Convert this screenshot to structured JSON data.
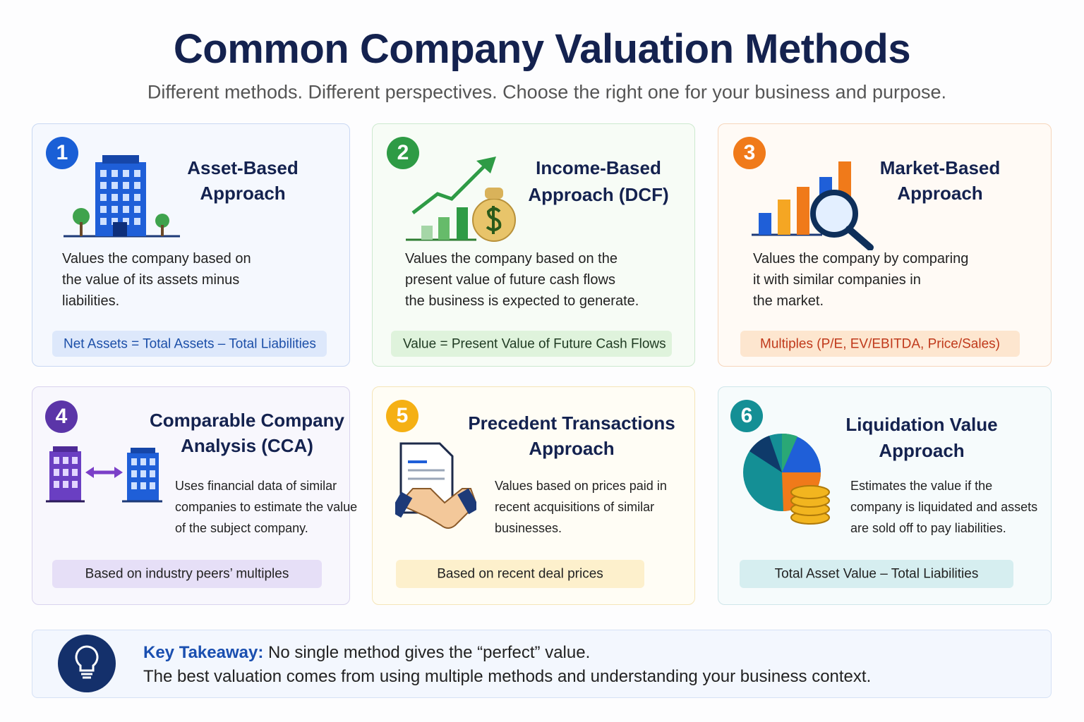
{
  "header": {
    "title": "Common Company Valuation Methods",
    "subtitle": "Different methods. Different perspectives. Choose the right one for your business and purpose."
  },
  "cards": [
    {
      "number": 1,
      "title_lines": [
        "Asset-Based",
        "Approach"
      ],
      "description_lines": [
        "Values the company based on",
        "the value of its assets minus",
        "liabilities."
      ],
      "formula": "Net Assets = Total Assets – Total Liabilities"
    },
    {
      "number": 2,
      "title_lines": [
        "Income-Based",
        "Approach (DCF)"
      ],
      "description_lines": [
        "Values the company based on the",
        "present value of future cash flows",
        "the business is expected to generate."
      ],
      "formula": "Value = Present Value of Future Cash Flows"
    },
    {
      "number": 3,
      "title_lines": [
        "Market-Based",
        "Approach"
      ],
      "description_lines": [
        "Values the company by comparing",
        "it with similar companies in",
        "the market."
      ],
      "formula": "Multiples (P/E, EV/EBITDA, Price/Sales)"
    },
    {
      "number": 4,
      "title_lines": [
        "Comparable Company",
        "Analysis (CCA)"
      ],
      "description_lines": [
        "Uses financial data of similar",
        "companies to estimate the value",
        "of the subject company."
      ],
      "formula": "Based on industry peers’ multiples"
    },
    {
      "number": 5,
      "title_lines": [
        "Precedent Transactions",
        "Approach"
      ],
      "description_lines": [
        "Values based on prices paid in",
        "recent acquisitions of similar",
        "businesses."
      ],
      "formula": "Based on recent deal prices"
    },
    {
      "number": 6,
      "title_lines": [
        "Liquidation Value",
        "Approach"
      ],
      "description_lines": [
        "Estimates the value if the",
        "company is liquidated and assets",
        "are sold off to pay liabilities."
      ],
      "formula": "Total Asset Value – Total Liabilities"
    }
  ],
  "takeaway": {
    "label": "Key Takeaway:",
    "line1": "No single method gives the “perfect” value.",
    "line2": "The best valuation comes from using multiple methods and understanding your business context."
  }
}
